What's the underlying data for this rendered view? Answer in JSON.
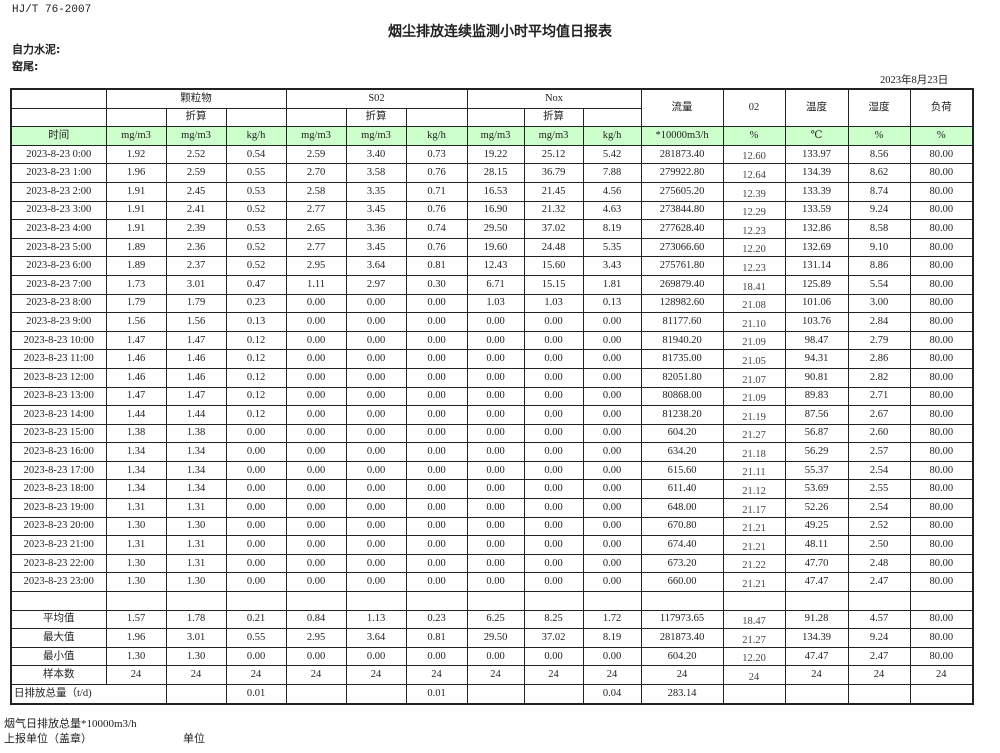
{
  "header": {
    "standard": "HJ/T  76-2007",
    "title": "烟尘排放连续监测小时平均值日报表",
    "company": "自力水泥:",
    "kiln": "窑尾:",
    "date": "2023年8月23日"
  },
  "table": {
    "groups": {
      "particulate": "颗粒物",
      "so2": "S02",
      "nox": "Nox",
      "flow": "流量",
      "o2": "02",
      "temp": "温度",
      "humidity": "湿度",
      "load": "负荷"
    },
    "converted": "折算",
    "time_label": "时间",
    "units": [
      "mg/m3",
      "mg/m3",
      "kg/h",
      "mg/m3",
      "mg/m3",
      "kg/h",
      "mg/m3",
      "mg/m3",
      "kg/h",
      "*10000m3/h",
      "%",
      "℃",
      "%",
      "%"
    ],
    "rows": [
      [
        "2023-8-23 0:00",
        "1.92",
        "2.52",
        "0.54",
        "2.59",
        "3.40",
        "0.73",
        "19.22",
        "25.12",
        "5.42",
        "281873.40",
        "12.60",
        "133.97",
        "8.56",
        "80.00"
      ],
      [
        "2023-8-23 1:00",
        "1.96",
        "2.59",
        "0.55",
        "2.70",
        "3.58",
        "0.76",
        "28.15",
        "36.79",
        "7.88",
        "279922.80",
        "12.64",
        "134.39",
        "8.62",
        "80.00"
      ],
      [
        "2023-8-23 2:00",
        "1.91",
        "2.45",
        "0.53",
        "2.58",
        "3.35",
        "0.71",
        "16.53",
        "21.45",
        "4.56",
        "275605.20",
        "12.39",
        "133.39",
        "8.74",
        "80.00"
      ],
      [
        "2023-8-23 3:00",
        "1.91",
        "2.41",
        "0.52",
        "2.77",
        "3.45",
        "0.76",
        "16.90",
        "21.32",
        "4.63",
        "273844.80",
        "12.29",
        "133.59",
        "9.24",
        "80.00"
      ],
      [
        "2023-8-23 4:00",
        "1.91",
        "2.39",
        "0.53",
        "2.65",
        "3.36",
        "0.74",
        "29.50",
        "37.02",
        "8.19",
        "277628.40",
        "12.23",
        "132.86",
        "8.58",
        "80.00"
      ],
      [
        "2023-8-23 5:00",
        "1.89",
        "2.36",
        "0.52",
        "2.77",
        "3.45",
        "0.76",
        "19.60",
        "24.48",
        "5.35",
        "273066.60",
        "12.20",
        "132.69",
        "9.10",
        "80.00"
      ],
      [
        "2023-8-23 6:00",
        "1.89",
        "2.37",
        "0.52",
        "2.95",
        "3.64",
        "0.81",
        "12.43",
        "15.60",
        "3.43",
        "275761.80",
        "12.23",
        "131.14",
        "8.86",
        "80.00"
      ],
      [
        "2023-8-23 7:00",
        "1.73",
        "3.01",
        "0.47",
        "1.11",
        "2.97",
        "0.30",
        "6.71",
        "15.15",
        "1.81",
        "269879.40",
        "18.41",
        "125.89",
        "5.54",
        "80.00"
      ],
      [
        "2023-8-23 8:00",
        "1.79",
        "1.79",
        "0.23",
        "0.00",
        "0.00",
        "0.00",
        "1.03",
        "1.03",
        "0.13",
        "128982.60",
        "21.08",
        "101.06",
        "3.00",
        "80.00"
      ],
      [
        "2023-8-23 9:00",
        "1.56",
        "1.56",
        "0.13",
        "0.00",
        "0.00",
        "0.00",
        "0.00",
        "0.00",
        "0.00",
        "81177.60",
        "21.10",
        "103.76",
        "2.84",
        "80.00"
      ],
      [
        "2023-8-23 10:00",
        "1.47",
        "1.47",
        "0.12",
        "0.00",
        "0.00",
        "0.00",
        "0.00",
        "0.00",
        "0.00",
        "81940.20",
        "21.09",
        "98.47",
        "2.79",
        "80.00"
      ],
      [
        "2023-8-23 11:00",
        "1.46",
        "1.46",
        "0.12",
        "0.00",
        "0.00",
        "0.00",
        "0.00",
        "0.00",
        "0.00",
        "81735.00",
        "21.05",
        "94.31",
        "2.86",
        "80.00"
      ],
      [
        "2023-8-23 12:00",
        "1.46",
        "1.46",
        "0.12",
        "0.00",
        "0.00",
        "0.00",
        "0.00",
        "0.00",
        "0.00",
        "82051.80",
        "21.07",
        "90.81",
        "2.82",
        "80.00"
      ],
      [
        "2023-8-23 13:00",
        "1.47",
        "1.47",
        "0.12",
        "0.00",
        "0.00",
        "0.00",
        "0.00",
        "0.00",
        "0.00",
        "80868.00",
        "21.09",
        "89.83",
        "2.71",
        "80.00"
      ],
      [
        "2023-8-23 14:00",
        "1.44",
        "1.44",
        "0.12",
        "0.00",
        "0.00",
        "0.00",
        "0.00",
        "0.00",
        "0.00",
        "81238.20",
        "21.19",
        "87.56",
        "2.67",
        "80.00"
      ],
      [
        "2023-8-23 15:00",
        "1.38",
        "1.38",
        "0.00",
        "0.00",
        "0.00",
        "0.00",
        "0.00",
        "0.00",
        "0.00",
        "604.20",
        "21.27",
        "56.87",
        "2.60",
        "80.00"
      ],
      [
        "2023-8-23 16:00",
        "1.34",
        "1.34",
        "0.00",
        "0.00",
        "0.00",
        "0.00",
        "0.00",
        "0.00",
        "0.00",
        "634.20",
        "21.18",
        "56.29",
        "2.57",
        "80.00"
      ],
      [
        "2023-8-23 17:00",
        "1.34",
        "1.34",
        "0.00",
        "0.00",
        "0.00",
        "0.00",
        "0.00",
        "0.00",
        "0.00",
        "615.60",
        "21.11",
        "55.37",
        "2.54",
        "80.00"
      ],
      [
        "2023-8-23 18:00",
        "1.34",
        "1.34",
        "0.00",
        "0.00",
        "0.00",
        "0.00",
        "0.00",
        "0.00",
        "0.00",
        "611.40",
        "21.12",
        "53.69",
        "2.55",
        "80.00"
      ],
      [
        "2023-8-23 19:00",
        "1.31",
        "1.31",
        "0.00",
        "0.00",
        "0.00",
        "0.00",
        "0.00",
        "0.00",
        "0.00",
        "648.00",
        "21.17",
        "52.26",
        "2.54",
        "80.00"
      ],
      [
        "2023-8-23 20:00",
        "1.30",
        "1.30",
        "0.00",
        "0.00",
        "0.00",
        "0.00",
        "0.00",
        "0.00",
        "0.00",
        "670.80",
        "21.21",
        "49.25",
        "2.52",
        "80.00"
      ],
      [
        "2023-8-23 21:00",
        "1.31",
        "1.31",
        "0.00",
        "0.00",
        "0.00",
        "0.00",
        "0.00",
        "0.00",
        "0.00",
        "674.40",
        "21.21",
        "48.11",
        "2.50",
        "80.00"
      ],
      [
        "2023-8-23 22:00",
        "1.30",
        "1.31",
        "0.00",
        "0.00",
        "0.00",
        "0.00",
        "0.00",
        "0.00",
        "0.00",
        "673.20",
        "21.22",
        "47.70",
        "2.48",
        "80.00"
      ],
      [
        "2023-8-23 23:00",
        "1.30",
        "1.30",
        "0.00",
        "0.00",
        "0.00",
        "0.00",
        "0.00",
        "0.00",
        "0.00",
        "660.00",
        "21.21",
        "47.47",
        "2.47",
        "80.00"
      ]
    ],
    "summary": [
      [
        "平均值",
        "1.57",
        "1.78",
        "0.21",
        "0.84",
        "1.13",
        "0.23",
        "6.25",
        "8.25",
        "1.72",
        "117973.65",
        "18.47",
        "91.28",
        "4.57",
        "80.00"
      ],
      [
        "最大值",
        "1.96",
        "3.01",
        "0.55",
        "2.95",
        "3.64",
        "0.81",
        "29.50",
        "37.02",
        "8.19",
        "281873.40",
        "21.27",
        "134.39",
        "9.24",
        "80.00"
      ],
      [
        "最小值",
        "1.30",
        "1.30",
        "0.00",
        "0.00",
        "0.00",
        "0.00",
        "0.00",
        "0.00",
        "0.00",
        "604.20",
        "12.20",
        "47.47",
        "2.47",
        "80.00"
      ],
      [
        "样本数",
        "24",
        "24",
        "24",
        "24",
        "24",
        "24",
        "24",
        "24",
        "24",
        "24",
        "24",
        "24",
        "24",
        "24"
      ]
    ],
    "daily": {
      "label": "日排放总量（t/d)",
      "values": [
        "",
        "0.01",
        "",
        "",
        "0.01",
        "",
        "",
        "0.04",
        "283.14",
        "",
        "",
        "",
        ""
      ]
    }
  },
  "footer": {
    "flue_total": "烟气日排放总量*10000m3/h",
    "reporting_unit": "上报单位（盖章）",
    "unit": "单位"
  },
  "colors": {
    "unit_row_bg": "#ccffcc"
  }
}
